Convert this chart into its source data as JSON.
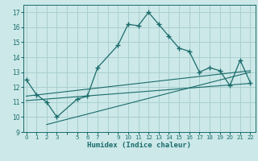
{
  "xlabel": "Humidex (Indice chaleur)",
  "bg_color": "#cce8e8",
  "grid_color": "#aacfcf",
  "line_color": "#1a6b6b",
  "x_ticks": [
    0,
    1,
    2,
    3,
    4,
    5,
    6,
    7,
    8,
    9,
    10,
    11,
    12,
    13,
    14,
    15,
    16,
    17,
    18,
    19,
    20,
    21,
    22
  ],
  "x_tick_labels": [
    "0",
    "1",
    "2",
    "3",
    "",
    "5",
    "6",
    "7",
    "",
    "9",
    "10",
    "11",
    "12",
    "13",
    "14",
    "15",
    "16",
    "17",
    "18",
    "19",
    "20",
    "21",
    "22"
  ],
  "ylim": [
    9,
    17.5
  ],
  "xlim": [
    -0.3,
    22.5
  ],
  "main_line_x": [
    0,
    1,
    2,
    3,
    5,
    6,
    7,
    9,
    10,
    11,
    12,
    13,
    14,
    15,
    16,
    17,
    18,
    19,
    20,
    21,
    22
  ],
  "main_line_y": [
    12.5,
    11.5,
    11.0,
    10.0,
    11.2,
    11.4,
    13.3,
    14.8,
    16.2,
    16.1,
    17.0,
    16.2,
    15.4,
    14.6,
    14.4,
    13.0,
    13.3,
    13.1,
    12.1,
    13.8,
    12.3
  ],
  "trend1_x": [
    0,
    22
  ],
  "trend1_y": [
    11.1,
    12.25
  ],
  "trend2_x": [
    0,
    22
  ],
  "trend2_y": [
    11.4,
    13.1
  ],
  "trend3_x": [
    2,
    22
  ],
  "trend3_y": [
    9.5,
    13.0
  ]
}
